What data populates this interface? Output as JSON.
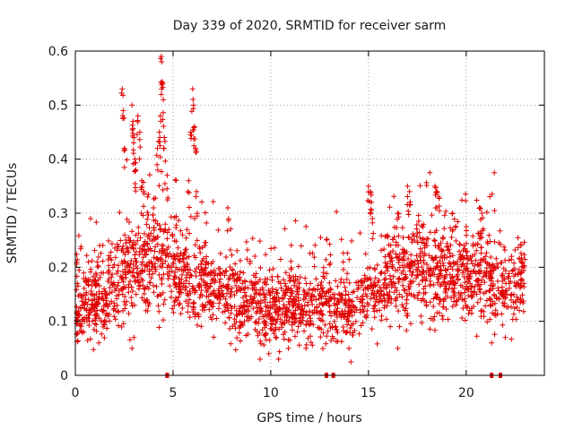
{
  "chart_data": {
    "type": "scatter",
    "title": "Day 339 of 2020, SRMTID for receiver sarm",
    "xlabel": "GPS time / hours",
    "ylabel": "SRMTID / TECUs",
    "xlim": [
      0,
      24
    ],
    "ylim": [
      0,
      0.6
    ],
    "x_ticks": [
      0,
      5,
      10,
      15,
      20
    ],
    "x_tick_labels": [
      "0",
      "5",
      "10",
      "15",
      "20"
    ],
    "y_ticks": [
      0,
      0.1,
      0.2,
      0.3,
      0.4,
      0.5,
      0.6
    ],
    "y_tick_labels": [
      "0",
      "0.1",
      "0.2",
      "0.3",
      "0.4",
      "0.5",
      "0.6"
    ],
    "grid": true,
    "marker": "+",
    "color": "#e00000",
    "data_range_hours": [
      0,
      23
    ],
    "baseline_envelope": {
      "hours": [
        0,
        1,
        2,
        3,
        4,
        5,
        6,
        7,
        8,
        9,
        10,
        11,
        12,
        13,
        14,
        15,
        16,
        17,
        18,
        19,
        20,
        21,
        22,
        23
      ],
      "center": [
        0.12,
        0.14,
        0.17,
        0.2,
        0.22,
        0.2,
        0.18,
        0.16,
        0.15,
        0.14,
        0.12,
        0.13,
        0.13,
        0.13,
        0.12,
        0.15,
        0.18,
        0.19,
        0.2,
        0.18,
        0.19,
        0.18,
        0.16,
        0.17
      ],
      "spread": [
        0.04,
        0.045,
        0.05,
        0.06,
        0.06,
        0.055,
        0.05,
        0.045,
        0.045,
        0.04,
        0.04,
        0.04,
        0.04,
        0.04,
        0.04,
        0.045,
        0.05,
        0.055,
        0.055,
        0.05,
        0.05,
        0.05,
        0.045,
        0.04
      ]
    },
    "high_points": [
      {
        "x": 2.4,
        "y": 0.53
      },
      {
        "x": 2.45,
        "y": 0.49
      },
      {
        "x": 2.5,
        "y": 0.42
      },
      {
        "x": 2.9,
        "y": 0.5
      },
      {
        "x": 2.95,
        "y": 0.47
      },
      {
        "x": 3.0,
        "y": 0.44
      },
      {
        "x": 3.05,
        "y": 0.4
      },
      {
        "x": 3.1,
        "y": 0.38
      },
      {
        "x": 3.2,
        "y": 0.48
      },
      {
        "x": 3.3,
        "y": 0.45
      },
      {
        "x": 3.4,
        "y": 0.36
      },
      {
        "x": 3.5,
        "y": 0.34
      },
      {
        "x": 3.7,
        "y": 0.33
      },
      {
        "x": 4.0,
        "y": 0.31
      },
      {
        "x": 4.2,
        "y": 0.42
      },
      {
        "x": 4.3,
        "y": 0.45
      },
      {
        "x": 4.35,
        "y": 0.48
      },
      {
        "x": 4.4,
        "y": 0.59
      },
      {
        "x": 4.42,
        "y": 0.58
      },
      {
        "x": 4.45,
        "y": 0.54
      },
      {
        "x": 4.5,
        "y": 0.51
      },
      {
        "x": 4.55,
        "y": 0.44
      },
      {
        "x": 4.7,
        "y": 0.37
      },
      {
        "x": 5.8,
        "y": 0.36
      },
      {
        "x": 5.9,
        "y": 0.45
      },
      {
        "x": 6.0,
        "y": 0.53
      },
      {
        "x": 6.05,
        "y": 0.5
      },
      {
        "x": 6.1,
        "y": 0.46
      },
      {
        "x": 6.15,
        "y": 0.42
      },
      {
        "x": 6.2,
        "y": 0.34
      },
      {
        "x": 7.8,
        "y": 0.31
      },
      {
        "x": 15.0,
        "y": 0.35
      },
      {
        "x": 15.1,
        "y": 0.34
      },
      {
        "x": 15.15,
        "y": 0.32
      },
      {
        "x": 15.2,
        "y": 0.29
      },
      {
        "x": 16.5,
        "y": 0.3
      },
      {
        "x": 17.0,
        "y": 0.35
      },
      {
        "x": 17.1,
        "y": 0.34
      },
      {
        "x": 18.4,
        "y": 0.35
      },
      {
        "x": 18.5,
        "y": 0.34
      },
      {
        "x": 18.6,
        "y": 0.33
      },
      {
        "x": 19.3,
        "y": 0.3
      },
      {
        "x": 20.7,
        "y": 0.31
      },
      {
        "x": 20.8,
        "y": 0.3
      },
      {
        "x": 22.8,
        "y": 0.24
      }
    ],
    "low_points": [
      {
        "x": 1.2,
        "y": 0.06
      },
      {
        "x": 2.9,
        "y": 0.05
      },
      {
        "x": 3.0,
        "y": 0.07
      },
      {
        "x": 10.4,
        "y": 0.03
      },
      {
        "x": 9.9,
        "y": 0.04
      },
      {
        "x": 10.9,
        "y": 0.05
      },
      {
        "x": 11.8,
        "y": 0.05
      },
      {
        "x": 14.0,
        "y": 0.05
      },
      {
        "x": 16.5,
        "y": 0.05
      },
      {
        "x": 21.3,
        "y": 0.06
      },
      {
        "x": 22.0,
        "y": 0.07
      }
    ],
    "axis_markers_hours": [
      4.7,
      12.85,
      13.2,
      21.3,
      21.75
    ]
  }
}
